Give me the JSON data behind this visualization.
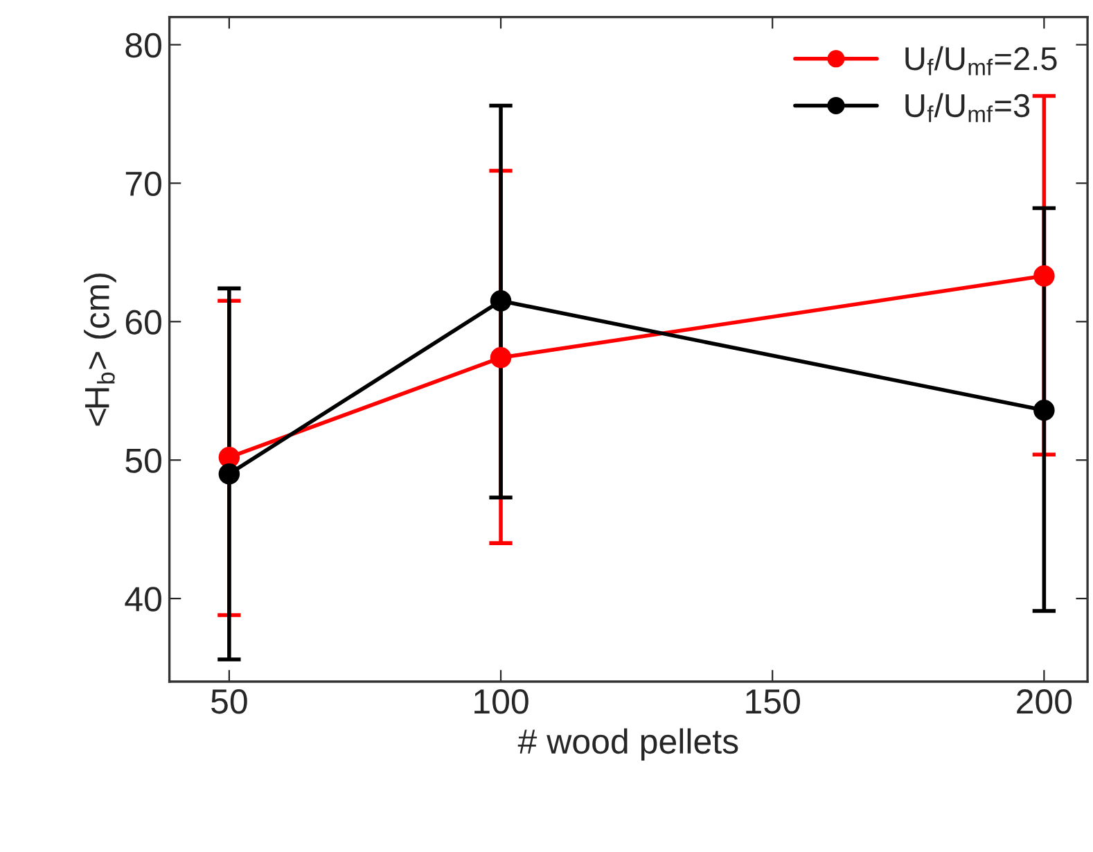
{
  "chart_data": {
    "type": "line",
    "xlabel": "# wood pellets",
    "ylabel": "<H$_{b}$> (cm)",
    "x": [
      50,
      100,
      200
    ],
    "series": [
      {
        "name": "U$_{f}$/U$_{mf}$=2.5",
        "color": "#ff0000",
        "values": [
          50.2,
          57.4,
          63.3
        ],
        "errors": [
          [
            38.8,
            61.5
          ],
          [
            44.0,
            70.9
          ],
          [
            50.4,
            76.3
          ]
        ]
      },
      {
        "name": "U$_{f}$/U$_{mf}$=3",
        "color": "#000000",
        "values": [
          49.0,
          61.5,
          53.6
        ],
        "errors": [
          [
            35.6,
            62.4
          ],
          [
            47.3,
            75.6
          ],
          [
            39.1,
            68.2
          ]
        ]
      }
    ],
    "xlim": [
      39,
      208
    ],
    "xticks": [
      50,
      100,
      150,
      200
    ],
    "ylim": [
      34,
      82
    ],
    "yticks": [
      40,
      50,
      60,
      70,
      80
    ],
    "marker": "circle",
    "line_style": "solid",
    "legend": "top right",
    "grid": false
  }
}
